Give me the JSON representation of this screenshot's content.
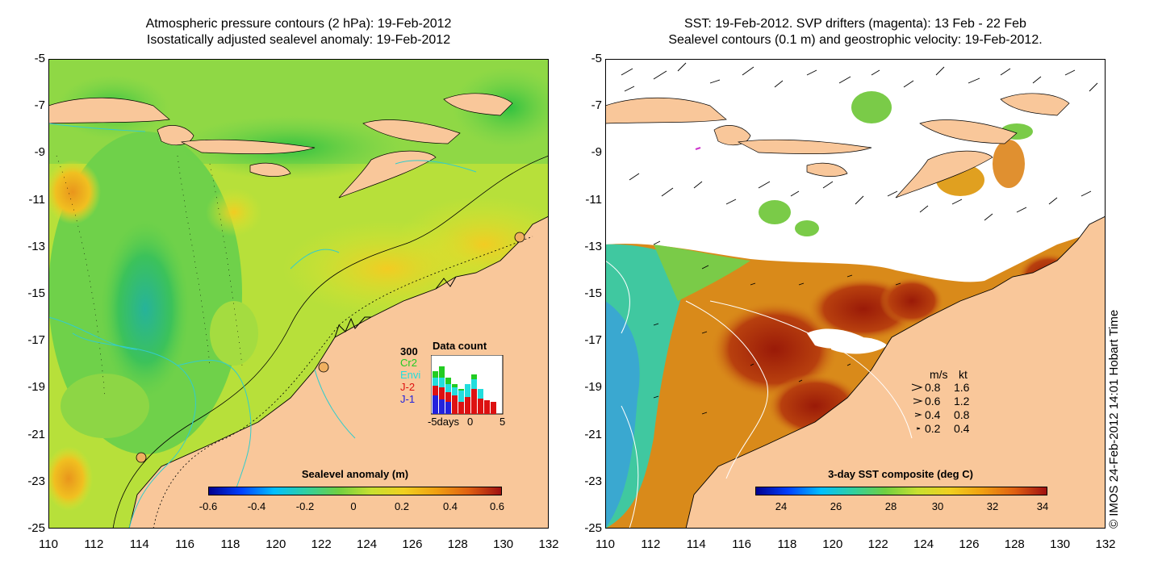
{
  "left_map": {
    "title_line1": "Atmospheric pressure contours (2 hPa): 19-Feb-2012",
    "title_line2": "Isostatically adjusted sealevel anomaly: 19-Feb-2012",
    "colorbar_label": "Sealevel anomaly (m)",
    "colorbar_ticks": [
      "-0.6",
      "-0.4",
      "-0.2",
      "0",
      "0.2",
      "0.4",
      "0.6"
    ],
    "data_count": {
      "title": "Data count",
      "max_label": "300",
      "missions": [
        {
          "name": "Cr2",
          "color": "#22cc22"
        },
        {
          "name": "Envi",
          "color": "#22dddd"
        },
        {
          "name": "J-2",
          "color": "#dd1111"
        },
        {
          "name": "J-1",
          "color": "#2222dd"
        }
      ],
      "x_ticks": [
        "-5days",
        "0",
        "5"
      ]
    }
  },
  "right_map": {
    "title_line1": "SST: 19-Feb-2012. SVP drifters (magenta): 13 Feb - 22 Feb",
    "title_line2": "Sealevel contours (0.1 m) and geostrophic velocity: 19-Feb-2012.",
    "colorbar_label": "3-day SST composite (deg C)",
    "colorbar_ticks": [
      "24",
      "26",
      "28",
      "30",
      "32",
      "34"
    ],
    "velocity_legend": {
      "header_ms": "m/s",
      "header_kt": "kt",
      "rows": [
        {
          "ms": "0.8",
          "kt": "1.6"
        },
        {
          "ms": "0.6",
          "kt": "1.2"
        },
        {
          "ms": "0.4",
          "kt": "0.8"
        },
        {
          "ms": "0.2",
          "kt": "0.4"
        }
      ]
    }
  },
  "axes": {
    "lat_ticks": [
      "-5",
      "-7",
      "-9",
      "-11",
      "-13",
      "-15",
      "-17",
      "-19",
      "-21",
      "-23",
      "-25"
    ],
    "lon_ticks": [
      "110",
      "112",
      "114",
      "116",
      "118",
      "120",
      "122",
      "124",
      "126",
      "128",
      "130",
      "132"
    ]
  },
  "copyright": "© IMOS 24-Feb-2012 14:01 Hobart Time",
  "colors": {
    "land": "#f9c79a",
    "sea_green": "#5fcf4a",
    "sea_yellow": "#d8e830",
    "sst_orange": "#d98a1a",
    "sst_red": "#a01a0a",
    "contour_cyan": "#33cccc",
    "drifter_magenta": "#cc33cc"
  }
}
